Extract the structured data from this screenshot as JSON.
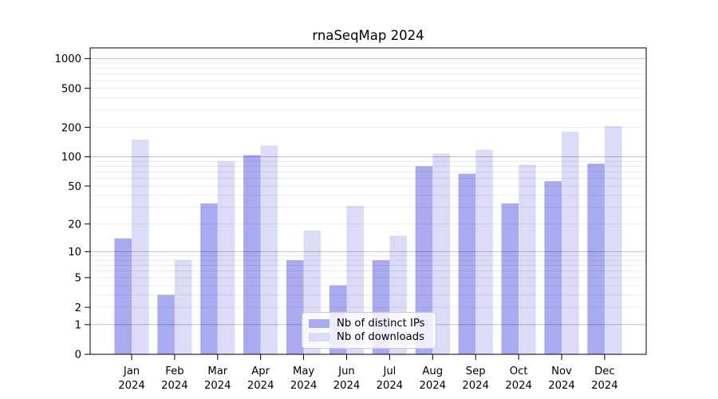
{
  "chart_data": {
    "type": "bar",
    "title": "rnaSeqMap 2024",
    "x_year": "2024",
    "categories": [
      "Jan",
      "Feb",
      "Mar",
      "Apr",
      "May",
      "Jun",
      "Jul",
      "Aug",
      "Sep",
      "Oct",
      "Nov",
      "Dec"
    ],
    "series": [
      {
        "name": "Nb of distinct IPs",
        "color": "#aaaaf0",
        "values": [
          14,
          3,
          33,
          104,
          8,
          4,
          8,
          80,
          67,
          33,
          56,
          85
        ]
      },
      {
        "name": "Nb of downloads",
        "color": "#dcdcf8",
        "values": [
          150,
          8,
          90,
          130,
          17,
          31,
          15,
          108,
          118,
          83,
          181,
          206
        ]
      }
    ],
    "y_axis": {
      "scale": "log10(1+value)",
      "ticks": [
        0,
        1,
        2,
        5,
        10,
        20,
        50,
        100,
        200,
        500,
        1000
      ],
      "major_gridlines": [
        1,
        10,
        100,
        1000
      ],
      "ylim": [
        0,
        1290
      ],
      "grid": true
    },
    "legend": {
      "position": "lower-center"
    }
  },
  "colors": {
    "bar_ips": "#aaaaf0",
    "bar_downloads": "#dcdcf8",
    "grid_major": "rgba(0,0,0,0.24)",
    "grid_minor": "rgba(0,0,0,0.08)",
    "axis": "#000000",
    "legend_border": "#cccccc"
  }
}
